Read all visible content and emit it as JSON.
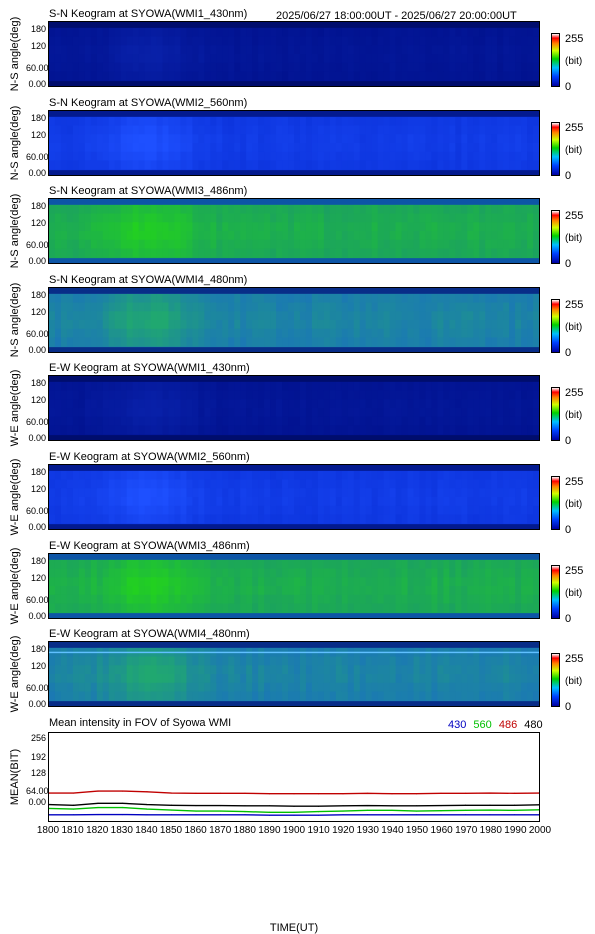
{
  "header": {
    "time_range": "2025/06/27 18:00:00UT - 2025/06/27 20:00:00UT"
  },
  "colorbar": {
    "max_label": "255",
    "unit": "(bit)",
    "min_label": "0"
  },
  "keogram_ticks": [
    "180",
    "120",
    "60.00",
    "0.00"
  ],
  "panels": [
    {
      "title": "S-N Keogram at SYOWA(WMI1_430nm)",
      "ylabel": "N-S angle(deg)",
      "base": "#00108c",
      "bright": "#0820a8",
      "edge": "#000c60",
      "stripe": ""
    },
    {
      "title": "S-N Keogram at SYOWA(WMI2_560nm)",
      "ylabel": "N-S angle(deg)",
      "base": "#0a30d8",
      "bright": "#1e50ff",
      "edge": "#001070",
      "stripe": ""
    },
    {
      "title": "S-N Keogram at SYOWA(WMI3_486nm)",
      "ylabel": "N-S angle(deg)",
      "base": "#1a9a6a",
      "bright": "#22d020",
      "edge": "#0838c0",
      "stripe": ""
    },
    {
      "title": "S-N Keogram at SYOWA(WMI4_480nm)",
      "ylabel": "N-S angle(deg)",
      "base": "#1a70c0",
      "bright": "#20a870",
      "edge": "#001070",
      "stripe": ""
    },
    {
      "title": "E-W Keogram at SYOWA(WMI1_430nm)",
      "ylabel": "W-E angle(deg)",
      "base": "#00108c",
      "bright": "#0820a8",
      "edge": "#000c60",
      "stripe": ""
    },
    {
      "title": "E-W Keogram at SYOWA(WMI2_560nm)",
      "ylabel": "W-E angle(deg)",
      "base": "#0a30d8",
      "bright": "#1e50ff",
      "edge": "#001070",
      "stripe": ""
    },
    {
      "title": "E-W Keogram at SYOWA(WMI3_486nm)",
      "ylabel": "W-E angle(deg)",
      "base": "#1a9a6a",
      "bright": "#22d020",
      "edge": "#0838c0",
      "stripe": ""
    },
    {
      "title": "E-W Keogram at SYOWA(WMI4_480nm)",
      "ylabel": "W-E angle(deg)",
      "base": "#1a70c0",
      "bright": "#20a870",
      "edge": "#001070",
      "stripe": "#60c0ff"
    }
  ],
  "mean": {
    "title": "Mean intensity in FOV of Syowa WMI",
    "ylabel": "MEAN(BIT)",
    "xlabel": "TIME(UT)",
    "yticks": [
      "256",
      "192",
      "128",
      "64.00",
      "0.00"
    ],
    "legend": [
      {
        "label": "430",
        "color": "#0000c0"
      },
      {
        "label": "560",
        "color": "#00c000"
      },
      {
        "label": "486",
        "color": "#c00000"
      },
      {
        "label": "480",
        "color": "#000000"
      }
    ]
  },
  "chart_data": {
    "type": "line",
    "title": "Mean intensity in FOV of Syowa WMI",
    "xlabel": "TIME(UT)",
    "ylabel": "MEAN(BIT)",
    "ylim": [
      0,
      256
    ],
    "xlim": [
      1800,
      2000
    ],
    "x": [
      1800,
      1810,
      1820,
      1830,
      1840,
      1850,
      1860,
      1870,
      1880,
      1890,
      1900,
      1910,
      1920,
      1930,
      1940,
      1950,
      1960,
      1970,
      1980,
      1990,
      2000
    ],
    "xtick_labels": [
      "1800",
      "1810",
      "1820",
      "1830",
      "1840",
      "1850",
      "1860",
      "1870",
      "1880",
      "1890",
      "1900",
      "1910",
      "1920",
      "1930",
      "1940",
      "1950",
      "1960",
      "1970",
      "1980",
      "1990",
      "2000"
    ],
    "series": [
      {
        "name": "430",
        "color": "#0000c0",
        "values": [
          10,
          10,
          11,
          11,
          10,
          10,
          10,
          10,
          10,
          9,
          9,
          9,
          10,
          10,
          10,
          10,
          10,
          10,
          10,
          10,
          10
        ]
      },
      {
        "name": "560",
        "color": "#00c000",
        "values": [
          30,
          28,
          33,
          33,
          28,
          25,
          22,
          22,
          20,
          18,
          18,
          20,
          22,
          24,
          24,
          22,
          23,
          24,
          25,
          24,
          26
        ]
      },
      {
        "name": "486",
        "color": "#c00000",
        "values": [
          78,
          78,
          84,
          84,
          82,
          78,
          77,
          77,
          77,
          76,
          76,
          76,
          76,
          77,
          76,
          76,
          77,
          77,
          78,
          77,
          78
        ]
      },
      {
        "name": "480",
        "color": "#000000",
        "values": [
          42,
          40,
          46,
          46,
          42,
          40,
          39,
          39,
          38,
          38,
          37,
          37,
          38,
          39,
          38,
          38,
          39,
          40,
          40,
          40,
          41
        ]
      }
    ]
  }
}
